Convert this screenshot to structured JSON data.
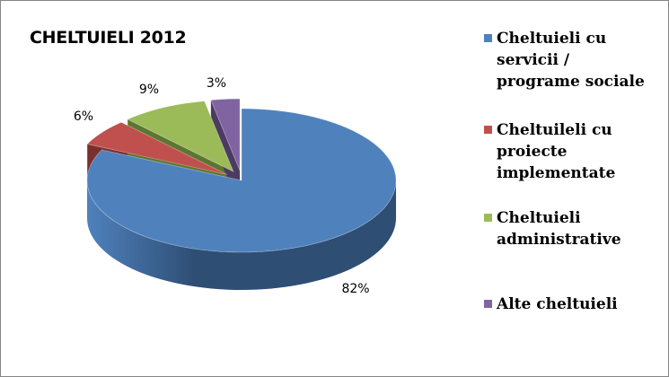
{
  "chart_data": {
    "type": "pie",
    "title": "CHELTUIELI 2012",
    "three_d": true,
    "legend_position": "right",
    "slices": [
      {
        "name": "Cheltuieli cu servicii / programe sociale",
        "legend_lines": [
          "Cheltuieli cu",
          "servicii /",
          "programe sociale"
        ],
        "value": 82,
        "label": "82%",
        "color": "#4F81BD",
        "dark": "#2E4E74"
      },
      {
        "name": "Cheltuileli cu proiecte implementate",
        "legend_lines": [
          "Cheltuileli cu",
          "proiecte",
          "implementate"
        ],
        "value": 6,
        "label": "6%",
        "color": "#C0504D",
        "dark": "#7A2F2D"
      },
      {
        "name": "Cheltuieli administrative",
        "legend_lines": [
          "Cheltuieli",
          "administrative"
        ],
        "value": 9,
        "label": "9%",
        "color": "#9BBB59",
        "dark": "#5E7532"
      },
      {
        "name": "Alte cheltuieli",
        "legend_lines": [
          "Alte cheltuieli"
        ],
        "value": 3,
        "label": "3%",
        "color": "#8064A2",
        "dark": "#4B3A61"
      }
    ]
  }
}
